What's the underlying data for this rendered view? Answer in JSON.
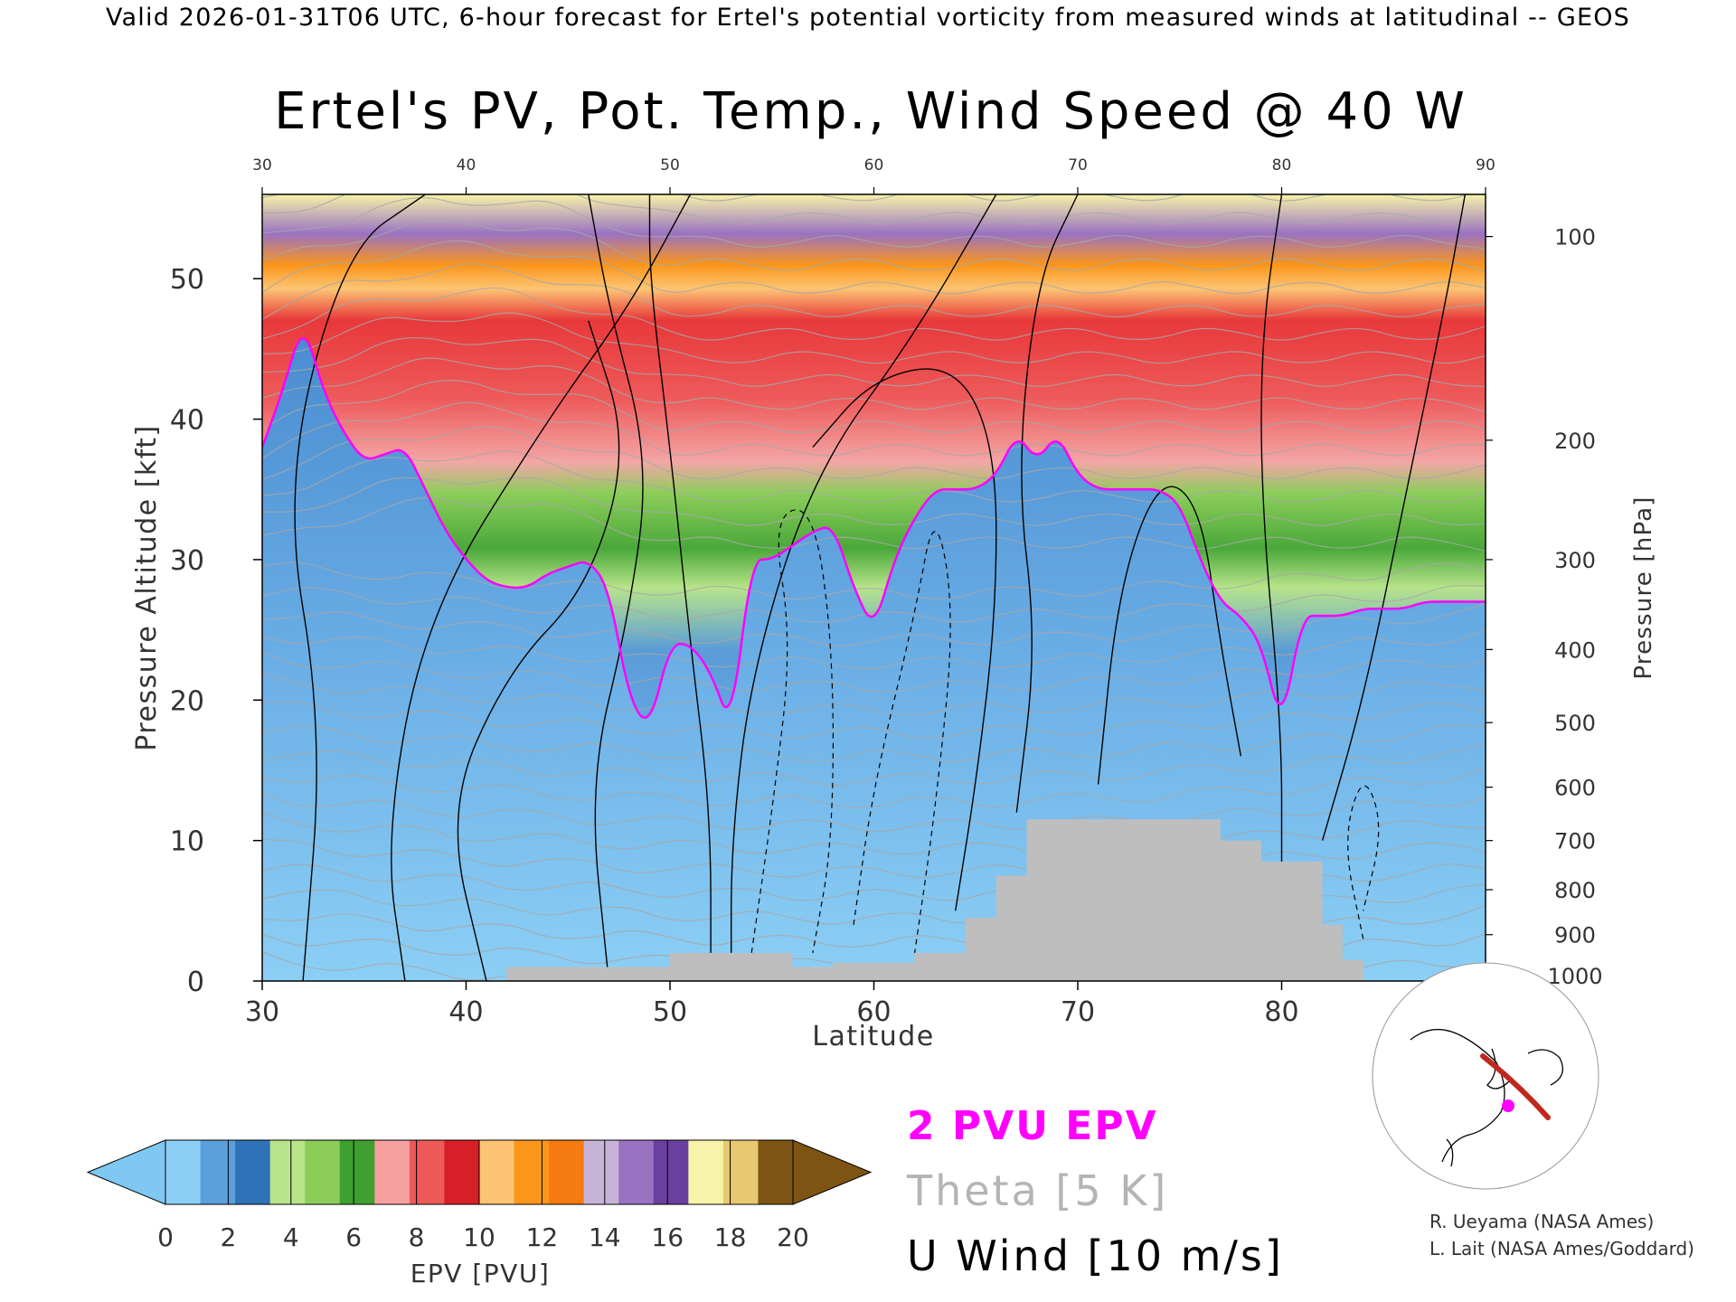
{
  "header": "Valid 2026-01-31T06 UTC, 6-hour forecast for Ertel's potential vorticity from measured winds at latitudinal -- GEOS",
  "title": "Ertel's PV, Pot. Temp., Wind Speed @ 40 W",
  "credits": [
    "R. Ueyama (NASA Ames)",
    "L. Lait (NASA Ames/Goddard)"
  ],
  "legend": {
    "pv2": "2 PVU EPV",
    "theta": "Theta [5 K]",
    "uwind": "U Wind [10 m/s]",
    "pv2_color": "#ff00ff",
    "theta_color": "#b4b4b4"
  },
  "colorbar": {
    "label": "EPV [PVU]",
    "ticks": [
      "0",
      "2",
      "4",
      "6",
      "8",
      "10",
      "12",
      "14",
      "16",
      "18",
      "20"
    ],
    "colors": [
      "#8ccff5",
      "#5aa0dc",
      "#2f72b8",
      "#b8e48a",
      "#8ccd5a",
      "#3f9f2f",
      "#f7a0a0",
      "#ee5a5a",
      "#d61f26",
      "#fcc474",
      "#fb961a",
      "#f57a10",
      "#c8b4d8",
      "#9a72c2",
      "#6b3fa0",
      "#f7f3a8",
      "#e8c870",
      "#7d5411"
    ]
  },
  "chart_data": {
    "type": "heatmap",
    "title": "Ertel's PV, Pot. Temp., Wind Speed @ 40 W",
    "xlabel": "Latitude",
    "ylabel": "Pressure Altitude [kft]",
    "y2label": "Pressure [hPa]",
    "xlim": [
      30,
      90
    ],
    "ylim": [
      0,
      56
    ],
    "xticks": [
      "30",
      "40",
      "50",
      "60",
      "70",
      "80",
      "90"
    ],
    "yticks": [
      "0",
      "10",
      "20",
      "30",
      "40",
      "50"
    ],
    "pressure_ticks": [
      "100",
      "200",
      "300",
      "400",
      "500",
      "600",
      "700",
      "800",
      "900",
      "1000"
    ],
    "pressure_tick_kft": [
      53,
      38.5,
      30,
      23.6,
      18.4,
      13.8,
      10,
      6.5,
      3.3,
      0.4
    ],
    "colorbar_range": [
      0,
      20
    ],
    "series": [
      {
        "name": "2 PVU EPV",
        "lat": [
          30,
          31,
          32,
          33,
          34,
          35,
          36,
          37,
          38,
          39,
          40,
          41,
          42,
          43,
          44,
          45,
          46,
          47,
          48,
          49,
          50,
          51,
          52,
          53,
          54,
          55,
          56,
          57,
          58,
          59,
          60,
          61,
          62,
          63,
          64,
          65,
          66,
          67,
          68,
          69,
          70,
          71,
          72,
          73,
          74,
          75,
          76,
          77,
          78,
          79,
          80,
          81,
          82,
          83,
          84,
          85,
          86,
          87,
          88,
          89,
          90
        ],
        "kft": [
          38,
          42,
          47,
          42,
          39,
          37,
          37.5,
          38,
          35,
          32,
          30,
          28.5,
          28,
          28,
          29,
          29.5,
          30,
          28,
          20,
          18,
          24,
          24,
          22,
          18,
          30,
          30,
          31,
          32,
          32.5,
          28,
          25,
          30,
          33,
          35,
          35,
          35,
          36,
          39,
          37,
          39,
          36,
          35,
          35,
          35,
          35,
          34,
          30,
          27,
          26,
          24,
          18,
          26,
          26,
          26,
          26.5,
          26.5,
          26.5,
          27,
          27,
          27,
          27
        ]
      }
    ]
  }
}
